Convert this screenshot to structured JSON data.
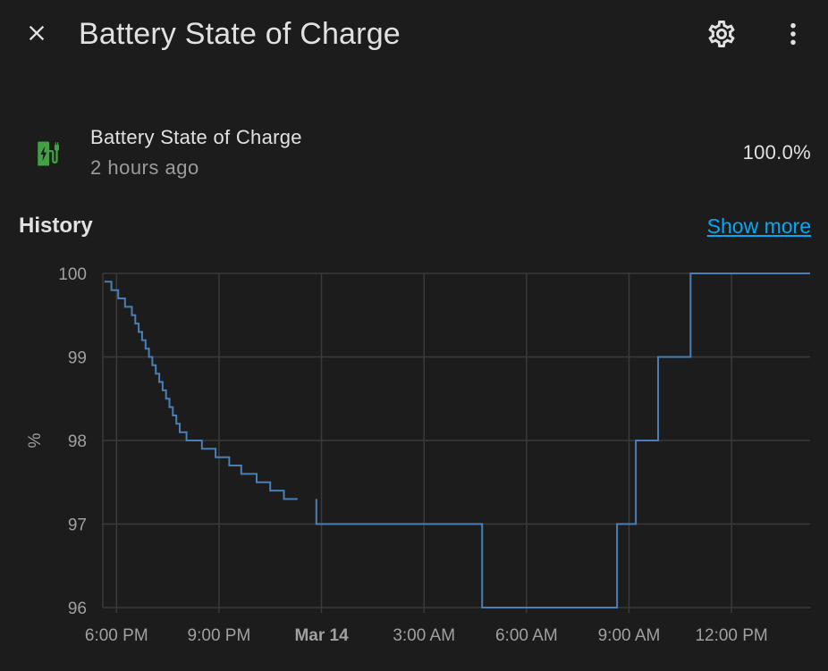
{
  "dialog": {
    "title": "Battery State of Charge",
    "icons": {
      "close": "close-icon",
      "settings": "gear-icon",
      "menu": "more-vertical-icon"
    }
  },
  "entity": {
    "name": "Battery State of Charge",
    "last_changed": "2 hours ago",
    "value": "100.0%",
    "icon": "battery-charging-icon",
    "icon_color": "#43a047"
  },
  "history": {
    "title": "History",
    "show_more": "Show more",
    "link_color": "#03a9f4"
  },
  "chart_data": {
    "type": "line",
    "step": true,
    "ylabel": "%",
    "xlabel": "",
    "ylim": [
      96,
      100
    ],
    "yticks": [
      "100",
      "99",
      "98",
      "97",
      "96"
    ],
    "xticks": [
      "6:00 PM",
      "9:00 PM",
      "Mar 14",
      "3:00 AM",
      "6:00 AM",
      "9:00 AM",
      "12:00 PM"
    ],
    "xticks_bold": [
      "Mar 14"
    ],
    "x_unit": "hours since 6:00 PM",
    "xlim": [
      -0.4,
      20.3
    ],
    "grid": true,
    "line_color": "#4a7fb5",
    "segments": [
      [
        [
          -0.35,
          99.9
        ],
        [
          -0.15,
          99.9
        ],
        [
          -0.15,
          99.8
        ],
        [
          0.05,
          99.8
        ],
        [
          0.05,
          99.7
        ],
        [
          0.25,
          99.7
        ],
        [
          0.25,
          99.6
        ],
        [
          0.45,
          99.6
        ],
        [
          0.45,
          99.5
        ],
        [
          0.55,
          99.5
        ],
        [
          0.55,
          99.4
        ],
        [
          0.65,
          99.4
        ],
        [
          0.65,
          99.3
        ],
        [
          0.75,
          99.3
        ],
        [
          0.75,
          99.2
        ],
        [
          0.85,
          99.2
        ],
        [
          0.85,
          99.1
        ],
        [
          0.95,
          99.1
        ],
        [
          0.95,
          99.0
        ],
        [
          1.05,
          99.0
        ],
        [
          1.05,
          98.9
        ],
        [
          1.15,
          98.9
        ],
        [
          1.15,
          98.8
        ],
        [
          1.25,
          98.8
        ],
        [
          1.25,
          98.7
        ],
        [
          1.35,
          98.7
        ],
        [
          1.35,
          98.6
        ],
        [
          1.45,
          98.6
        ],
        [
          1.45,
          98.5
        ],
        [
          1.55,
          98.5
        ],
        [
          1.55,
          98.4
        ],
        [
          1.65,
          98.4
        ],
        [
          1.65,
          98.3
        ],
        [
          1.75,
          98.3
        ],
        [
          1.75,
          98.2
        ],
        [
          1.85,
          98.2
        ],
        [
          1.85,
          98.1
        ],
        [
          2.05,
          98.1
        ],
        [
          2.05,
          98.0
        ],
        [
          2.5,
          98.0
        ],
        [
          2.5,
          97.9
        ],
        [
          2.9,
          97.9
        ],
        [
          2.9,
          97.8
        ],
        [
          3.3,
          97.8
        ],
        [
          3.3,
          97.7
        ],
        [
          3.65,
          97.7
        ],
        [
          3.65,
          97.6
        ],
        [
          4.1,
          97.6
        ],
        [
          4.1,
          97.5
        ],
        [
          4.5,
          97.5
        ],
        [
          4.5,
          97.4
        ],
        [
          4.9,
          97.4
        ],
        [
          4.9,
          97.3
        ],
        [
          5.3,
          97.3
        ]
      ],
      [
        [
          5.85,
          97.3
        ],
        [
          5.85,
          97.0
        ],
        [
          7.25,
          97.0
        ],
        [
          7.25,
          97.0
        ],
        [
          10.7,
          97.0
        ],
        [
          10.7,
          96.0
        ],
        [
          14.65,
          96.0
        ],
        [
          14.65,
          97.0
        ],
        [
          15.2,
          97.0
        ],
        [
          15.2,
          98.0
        ],
        [
          15.85,
          98.0
        ],
        [
          15.85,
          99.0
        ],
        [
          16.8,
          99.0
        ],
        [
          16.8,
          100.0
        ],
        [
          20.3,
          100.0
        ]
      ]
    ]
  }
}
